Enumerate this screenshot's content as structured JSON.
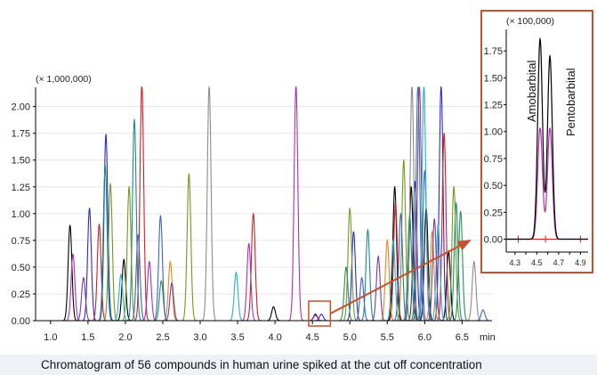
{
  "caption": "Chromatogram of 56 compounds in human urine spiked at the cut off concentration",
  "chart_data": [
    {
      "type": "line",
      "title": "",
      "xlabel": "min",
      "ylabel": "",
      "scale_label": "(× 1,000,000)",
      "xlim": [
        0.8,
        6.9
      ],
      "ylim": [
        0,
        2.18
      ],
      "x_ticks": [
        "1.0",
        "1.5",
        "2.0",
        "2.5",
        "3.0",
        "3.5",
        "4.0",
        "4.5",
        "5.0",
        "5.5",
        "6.0",
        "6.5"
      ],
      "y_ticks": [
        "0.00",
        "0.25",
        "0.50",
        "0.75",
        "1.00",
        "1.25",
        "1.50",
        "1.75",
        "2.00"
      ],
      "zoom_window": [
        4.45,
        4.74
      ],
      "zoom_color": "#c8502a",
      "series": [
        {
          "color": "#000000",
          "peaks": [
            [
              1.26,
              0.89
            ],
            [
              1.98,
              0.57
            ],
            [
              3.98,
              0.13
            ],
            [
              4.54,
              0.06
            ],
            [
              5.6,
              1.25
            ],
            [
              5.82,
              1.25
            ],
            [
              6.02,
              1.05
            ],
            [
              6.32,
              0.65
            ]
          ]
        },
        {
          "color": "#2a2ad0",
          "peaks": [
            [
              1.52,
              1.05
            ],
            [
              1.74,
              1.74
            ],
            [
              4.62,
              0.06
            ],
            [
              5.05,
              0.83
            ],
            [
              5.87,
              1.3
            ],
            [
              6.22,
              2.2
            ]
          ]
        },
        {
          "color": "#d02020",
          "peaks": [
            [
              1.65,
              0.9
            ],
            [
              2.22,
              2.2
            ],
            [
              3.71,
              1.0
            ],
            [
              5.61,
              1.1
            ],
            [
              6.26,
              1.75
            ]
          ]
        },
        {
          "color": "#1a8a8a",
          "peaks": [
            [
              1.73,
              1.45
            ],
            [
              2.12,
              1.88
            ],
            [
              5.24,
              0.85
            ],
            [
              5.91,
              2.2
            ],
            [
              6.42,
              1.1
            ]
          ]
        },
        {
          "color": "#b030b0",
          "peaks": [
            [
              1.3,
              0.62
            ],
            [
              2.32,
              0.55
            ],
            [
              3.65,
              0.72
            ],
            [
              4.28,
              2.2
            ],
            [
              4.54,
              0.05
            ],
            [
              5.93,
              2.2
            ]
          ]
        },
        {
          "color": "#6f9a1e",
          "peaks": [
            [
              1.8,
              1.28
            ],
            [
              2.05,
              1.25
            ],
            [
              2.85,
              1.37
            ],
            [
              5.0,
              1.05
            ],
            [
              5.72,
              1.5
            ],
            [
              6.39,
              1.25
            ]
          ]
        },
        {
          "color": "#e08a1c",
          "peaks": [
            [
              2.6,
              0.55
            ],
            [
              5.5,
              0.75
            ],
            [
              6.1,
              0.83
            ]
          ]
        },
        {
          "color": "#8c8c8c",
          "peaks": [
            [
              3.12,
              2.2
            ],
            [
              5.83,
              2.2
            ],
            [
              6.66,
              0.55
            ]
          ]
        },
        {
          "color": "#2f8f4f",
          "peaks": [
            [
              2.48,
              0.37
            ],
            [
              4.95,
              0.5
            ],
            [
              5.8,
              0.98
            ],
            [
              6.48,
              1.02
            ]
          ]
        },
        {
          "color": "#3a62c8",
          "peaks": [
            [
              2.17,
              0.8
            ],
            [
              2.47,
              0.98
            ],
            [
              5.16,
              0.4
            ],
            [
              5.68,
              1.0
            ],
            [
              6.0,
              1.4
            ],
            [
              6.78,
              0.1
            ]
          ]
        },
        {
          "color": "#27b3c9",
          "peaks": [
            [
              1.94,
              0.43
            ],
            [
              3.48,
              0.45
            ],
            [
              5.58,
              0.75
            ],
            [
              5.99,
              2.2
            ],
            [
              6.18,
              0.9
            ]
          ]
        },
        {
          "color": "#7a3aa0",
          "peaks": [
            [
              1.44,
              0.4
            ],
            [
              2.62,
              0.35
            ],
            [
              5.38,
              0.6
            ],
            [
              6.13,
              0.95
            ]
          ]
        }
      ]
    },
    {
      "type": "line",
      "title": "",
      "xlabel": "",
      "ylabel": "",
      "scale_label": "(× 100,000)",
      "xlim": [
        4.22,
        4.97
      ],
      "ylim": [
        -0.12,
        1.95
      ],
      "x_ticks": [
        "4.3",
        "4.5",
        "4.7",
        "4.9"
      ],
      "y_ticks": [
        "0.00",
        "0.25",
        "0.50",
        "0.75",
        "1.00",
        "1.25",
        "1.50",
        "1.75"
      ],
      "annotations": [
        "Amobarbital",
        "Pentobarbital"
      ],
      "series": [
        {
          "color": "#000000",
          "peaks": [
            [
              4.53,
              1.86
            ],
            [
              4.62,
              1.7
            ]
          ]
        },
        {
          "color": "#b030b0",
          "peaks": [
            [
              4.53,
              1.03
            ],
            [
              4.62,
              1.03
            ]
          ]
        }
      ]
    }
  ]
}
